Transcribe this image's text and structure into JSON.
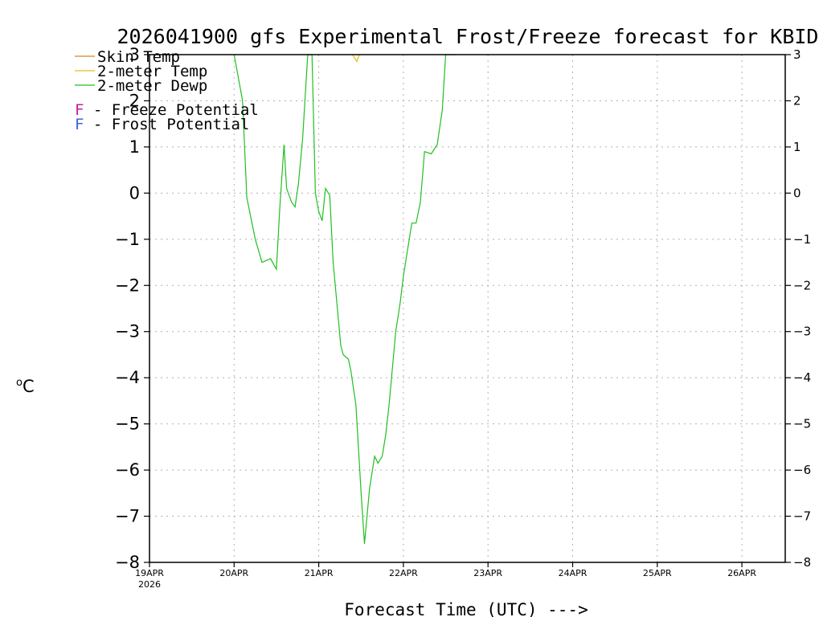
{
  "chart_data": {
    "type": "line",
    "title": "2026041900 gfs Experimental Frost/Freeze forecast for KBID",
    "xlabel": "Forecast Time (UTC) --->",
    "ylabel_unit": "C",
    "ylabel_degree": "o",
    "ylim": [
      -8,
      3
    ],
    "xlim_days": [
      0,
      7.5
    ],
    "yticks": [
      3,
      2,
      1,
      0,
      -1,
      -2,
      -3,
      -4,
      -5,
      -6,
      -7,
      -8
    ],
    "ytick_labels": [
      "3",
      "2",
      "1",
      "0",
      "−1",
      "−2",
      "−3",
      "−4",
      "−5",
      "−6",
      "−7",
      "−8"
    ],
    "xticks": [
      {
        "day": 0,
        "label": "19APR",
        "sub": "2026"
      },
      {
        "day": 1,
        "label": "20APR"
      },
      {
        "day": 2,
        "label": "21APR"
      },
      {
        "day": 3,
        "label": "22APR"
      },
      {
        "day": 4,
        "label": "23APR"
      },
      {
        "day": 5,
        "label": "24APR"
      },
      {
        "day": 6,
        "label": "25APR"
      },
      {
        "day": 7,
        "label": "26APR"
      }
    ],
    "grid": true,
    "legend": {
      "position": "top-left",
      "entries": [
        {
          "name": "Skin Temp",
          "color": "#e08020"
        },
        {
          "name": "2-meter Temp",
          "color": "#e0c020"
        },
        {
          "name": "2-meter Dewp",
          "color": "#20c020"
        }
      ],
      "flags": [
        {
          "letter": "F",
          "text": " - Freeze Potential",
          "color": "#c020a0"
        },
        {
          "letter": "F",
          "text": " - Frost Potential",
          "color": "#4060e0"
        }
      ]
    },
    "series": [
      {
        "name": "2-meter Dewp",
        "color": "#20c020",
        "x": [
          1.0,
          1.1,
          1.15,
          1.25,
          1.33,
          1.43,
          1.5,
          1.54,
          1.59,
          1.62,
          1.68,
          1.72,
          1.76,
          1.81,
          1.87,
          1.92,
          1.96,
          2.0,
          2.04,
          2.08,
          2.13,
          2.17,
          2.26,
          2.29,
          2.35,
          2.38,
          2.44,
          2.5,
          2.54,
          2.6,
          2.66,
          2.7,
          2.75,
          2.79,
          2.83,
          2.87,
          2.91,
          2.96,
          3.0,
          3.1,
          3.15,
          3.2,
          3.25,
          3.33,
          3.4,
          3.46,
          3.5,
          3.54,
          3.58,
          3.62
        ],
        "y": [
          3.0,
          2.0,
          -0.1,
          -1.0,
          -1.5,
          -1.42,
          -1.65,
          -0.3,
          1.05,
          0.1,
          -0.2,
          -0.3,
          0.2,
          1.2,
          3.0,
          3.0,
          0.0,
          -0.4,
          -0.6,
          0.1,
          -0.05,
          -1.5,
          -3.3,
          -3.5,
          -3.6,
          -3.85,
          -4.6,
          -6.5,
          -7.6,
          -6.4,
          -5.7,
          -5.85,
          -5.7,
          -5.25,
          -4.6,
          -3.8,
          -3.0,
          -2.4,
          -1.8,
          -0.65,
          -0.65,
          -0.2,
          0.9,
          0.85,
          1.05,
          1.8,
          3.0,
          3.0,
          3.0,
          3.0
        ]
      },
      {
        "name": "2-meter Temp",
        "color": "#e0c020",
        "x": [
          2.4,
          2.45,
          2.48
        ],
        "y": [
          3.0,
          2.85,
          3.0
        ]
      }
    ]
  }
}
